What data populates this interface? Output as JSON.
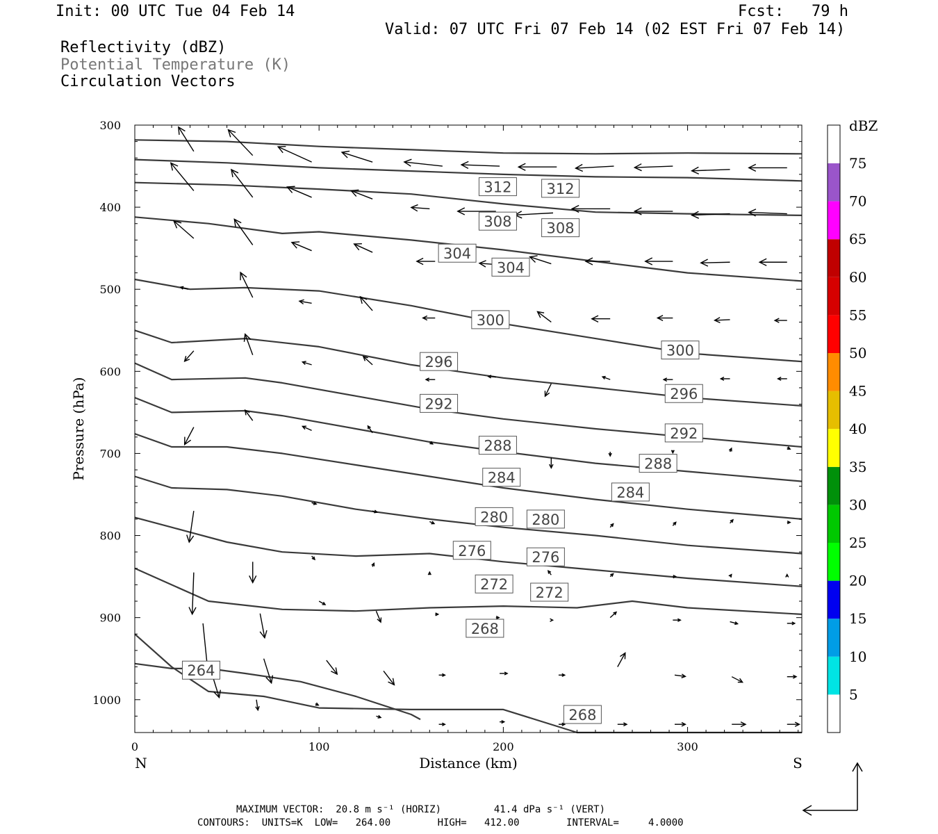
{
  "header": {
    "init": "Init: 00 UTC Tue 04 Feb 14",
    "fcst": "Fcst:   79 h",
    "valid": "Valid: 07 UTC Fri 07 Feb 14 (02 EST Fri 07 Feb 14)",
    "field1": "Reflectivity (dBZ)",
    "field2": "Potential Temperature (K)",
    "field3": "Circulation Vectors"
  },
  "footer": {
    "line1": "MAXIMUM VECTOR:  20.8 m s⁻¹ (HORIZ)         41.4 dPa s⁻¹ (VERT)",
    "line2": "CONTOURS:  UNITS=K  LOW=   264.00        HIGH=   412.00        INTERVAL=     4.0000"
  },
  "colors": {
    "contour": "#3a3a3a",
    "vector": "#000000",
    "frame": "#000000"
  },
  "chart_data": {
    "type": "line",
    "xlabel": "Distance (km)",
    "ylabel": "Pressure (hPa)",
    "xlim": [
      0,
      362
    ],
    "ylim": [
      1040,
      300
    ],
    "yscale": "linear-inverted",
    "x_ticks": [
      0,
      100,
      200,
      300
    ],
    "y_ticks": [
      300,
      400,
      500,
      600,
      700,
      800,
      900,
      1000
    ],
    "end_labels": {
      "left": "N",
      "right": "S"
    },
    "colorbar": {
      "title": "dBZ",
      "ticks": [
        5,
        10,
        15,
        20,
        25,
        30,
        35,
        40,
        45,
        50,
        55,
        60,
        65,
        70,
        75
      ],
      "colors": [
        "#ffffff",
        "#00e4e4",
        "#009de6",
        "#0000f0",
        "#00ff00",
        "#00c800",
        "#00900a",
        "#ffff00",
        "#e6be00",
        "#ff8c00",
        "#ff0000",
        "#d60000",
        "#c00000",
        "#ff00ff",
        "#9a55ca",
        "#ffffff"
      ]
    },
    "series": [
      {
        "name": "312",
        "x": [
          0,
          50,
          100,
          150,
          200,
          250,
          300,
          362
        ],
        "values": [
          318,
          320,
          326,
          330,
          334,
          335,
          334,
          335
        ]
      },
      {
        "name": "312",
        "x": [
          0,
          50,
          100,
          150,
          200,
          250,
          300,
          362
        ],
        "values": [
          342,
          346,
          352,
          356,
          360,
          363,
          364,
          368
        ]
      },
      {
        "name": "308",
        "x": [
          0,
          50,
          100,
          150,
          200,
          250,
          300,
          362
        ],
        "values": [
          370,
          373,
          378,
          384,
          396,
          406,
          408,
          410
        ]
      },
      {
        "name": "304",
        "x": [
          0,
          40,
          80,
          100,
          150,
          200,
          250,
          300,
          362
        ],
        "values": [
          412,
          420,
          432,
          430,
          440,
          452,
          466,
          480,
          490
        ]
      },
      {
        "name": "300",
        "x": [
          0,
          30,
          60,
          100,
          150,
          200,
          250,
          300,
          362
        ],
        "values": [
          488,
          500,
          498,
          502,
          520,
          542,
          560,
          578,
          588
        ]
      },
      {
        "name": "296",
        "x": [
          0,
          20,
          60,
          100,
          150,
          200,
          250,
          300,
          362
        ],
        "values": [
          550,
          565,
          560,
          570,
          592,
          608,
          620,
          632,
          642
        ]
      },
      {
        "name": "292",
        "x": [
          0,
          20,
          60,
          80,
          120,
          160,
          200,
          250,
          300,
          362
        ],
        "values": [
          590,
          610,
          608,
          614,
          630,
          646,
          658,
          670,
          680,
          692
        ]
      },
      {
        "name": "288",
        "x": [
          0,
          20,
          60,
          80,
          120,
          160,
          200,
          250,
          300,
          362
        ],
        "values": [
          632,
          650,
          648,
          654,
          670,
          686,
          698,
          712,
          722,
          734
        ]
      },
      {
        "name": "284",
        "x": [
          0,
          20,
          50,
          80,
          120,
          160,
          200,
          250,
          300,
          362
        ],
        "values": [
          676,
          692,
          692,
          700,
          714,
          728,
          742,
          756,
          768,
          780
        ]
      },
      {
        "name": "280",
        "x": [
          0,
          20,
          50,
          80,
          120,
          160,
          200,
          250,
          300,
          362
        ],
        "values": [
          728,
          742,
          744,
          752,
          768,
          780,
          790,
          800,
          812,
          822
        ]
      },
      {
        "name": "276",
        "x": [
          0,
          20,
          50,
          80,
          120,
          160,
          200,
          250,
          300,
          362
        ],
        "values": [
          778,
          790,
          808,
          820,
          825,
          822,
          832,
          842,
          852,
          862
        ]
      },
      {
        "name": "272",
        "x": [
          0,
          20,
          40,
          80,
          120,
          160,
          200,
          240,
          270,
          300,
          362
        ],
        "values": [
          840,
          860,
          880,
          890,
          892,
          888,
          886,
          888,
          880,
          888,
          896
        ]
      },
      {
        "name": "268",
        "x": [
          0,
          20,
          40,
          70,
          100,
          150,
          200,
          240,
          245,
          300,
          362
        ],
        "values": [
          920,
          960,
          990,
          996,
          1010,
          1012,
          1012,
          1040,
          1040,
          1040,
          1040
        ]
      },
      {
        "name": "264",
        "x": [
          0,
          20,
          40,
          60,
          90,
          120,
          150,
          155
        ],
        "values": [
          956,
          962,
          962,
          968,
          978,
          996,
          1018,
          1024
        ]
      }
    ],
    "contour_labels": [
      {
        "text": "312",
        "x": 197,
        "y": 375
      },
      {
        "text": "312",
        "x": 231,
        "y": 377
      },
      {
        "text": "308",
        "x": 197,
        "y": 417
      },
      {
        "text": "308",
        "x": 231,
        "y": 425
      },
      {
        "text": "304",
        "x": 175,
        "y": 456
      },
      {
        "text": "304",
        "x": 204,
        "y": 473
      },
      {
        "text": "300",
        "x": 193,
        "y": 537
      },
      {
        "text": "300",
        "x": 296,
        "y": 574
      },
      {
        "text": "296",
        "x": 165,
        "y": 588
      },
      {
        "text": "296",
        "x": 298,
        "y": 627
      },
      {
        "text": "292",
        "x": 165,
        "y": 639
      },
      {
        "text": "292",
        "x": 298,
        "y": 675
      },
      {
        "text": "288",
        "x": 197,
        "y": 690
      },
      {
        "text": "288",
        "x": 284,
        "y": 712
      },
      {
        "text": "284",
        "x": 199,
        "y": 729
      },
      {
        "text": "284",
        "x": 269,
        "y": 747
      },
      {
        "text": "280",
        "x": 195,
        "y": 777
      },
      {
        "text": "280",
        "x": 223,
        "y": 780
      },
      {
        "text": "276",
        "x": 183,
        "y": 818
      },
      {
        "text": "276",
        "x": 223,
        "y": 826
      },
      {
        "text": "272",
        "x": 195,
        "y": 859
      },
      {
        "text": "272",
        "x": 225,
        "y": 869
      },
      {
        "text": "268",
        "x": 190,
        "y": 913
      },
      {
        "text": "268",
        "x": 243,
        "y": 1018
      },
      {
        "text": "264",
        "x": 36,
        "y": 964
      }
    ],
    "vectors": [
      {
        "x": 32,
        "p": 332,
        "u": -10,
        "v": 35
      },
      {
        "x": 64,
        "p": 337,
        "u": -16,
        "v": 37
      },
      {
        "x": 96,
        "p": 345,
        "u": -22,
        "v": 22
      },
      {
        "x": 129,
        "p": 345,
        "u": -20,
        "v": 14
      },
      {
        "x": 167,
        "p": 350,
        "u": -25,
        "v": 6
      },
      {
        "x": 198,
        "p": 350,
        "u": -25,
        "v": 2
      },
      {
        "x": 229,
        "p": 351,
        "u": -25,
        "v": 0
      },
      {
        "x": 260,
        "p": 350,
        "u": -25,
        "v": -3
      },
      {
        "x": 292,
        "p": 350,
        "u": -25,
        "v": -2
      },
      {
        "x": 323,
        "p": 354,
        "u": -25,
        "v": -2
      },
      {
        "x": 354,
        "p": 352,
        "u": -25,
        "v": 0
      },
      {
        "x": 32,
        "p": 380,
        "u": -15,
        "v": 40
      },
      {
        "x": 64,
        "p": 388,
        "u": -14,
        "v": 40
      },
      {
        "x": 96,
        "p": 388,
        "u": -16,
        "v": 15
      },
      {
        "x": 129,
        "p": 390,
        "u": -14,
        "v": 12
      },
      {
        "x": 160,
        "p": 402,
        "u": -12,
        "v": 2
      },
      {
        "x": 196,
        "p": 405,
        "u": -25,
        "v": 0
      },
      {
        "x": 227,
        "p": 407,
        "u": -25,
        "v": -3
      },
      {
        "x": 258,
        "p": 402,
        "u": -25,
        "v": 0
      },
      {
        "x": 292,
        "p": 405,
        "u": -25,
        "v": 0
      },
      {
        "x": 323,
        "p": 408,
        "u": -25,
        "v": -2
      },
      {
        "x": 354,
        "p": 408,
        "u": -25,
        "v": 2
      },
      {
        "x": 32,
        "p": 438,
        "u": -13,
        "v": 25
      },
      {
        "x": 64,
        "p": 446,
        "u": -12,
        "v": 37
      },
      {
        "x": 96,
        "p": 453,
        "u": -13,
        "v": 12
      },
      {
        "x": 129,
        "p": 455,
        "u": -12,
        "v": 12
      },
      {
        "x": 163,
        "p": 466,
        "u": -12,
        "v": 0
      },
      {
        "x": 197,
        "p": 470,
        "u": -12,
        "v": 2
      },
      {
        "x": 226,
        "p": 469,
        "u": -14,
        "v": 10
      },
      {
        "x": 258,
        "p": 466,
        "u": -16,
        "v": 0
      },
      {
        "x": 292,
        "p": 466,
        "u": -18,
        "v": 0
      },
      {
        "x": 323,
        "p": 467,
        "u": -19,
        "v": -1
      },
      {
        "x": 354,
        "p": 467,
        "u": -18,
        "v": 0
      },
      {
        "x": 29,
        "p": 500,
        "u": -5,
        "v": 3
      },
      {
        "x": 64,
        "p": 510,
        "u": -8,
        "v": 36
      },
      {
        "x": 96,
        "p": 517,
        "u": -8,
        "v": 3
      },
      {
        "x": 129,
        "p": 526,
        "u": -8,
        "v": 20
      },
      {
        "x": 163,
        "p": 535,
        "u": -8,
        "v": 0
      },
      {
        "x": 196,
        "p": 535,
        "u": -9,
        "v": 0
      },
      {
        "x": 226,
        "p": 540,
        "u": -9,
        "v": 15
      },
      {
        "x": 258,
        "p": 536,
        "u": -12,
        "v": 0
      },
      {
        "x": 292,
        "p": 535,
        "u": -10,
        "v": 0
      },
      {
        "x": 323,
        "p": 537,
        "u": -10,
        "v": -1
      },
      {
        "x": 354,
        "p": 538,
        "u": -8,
        "v": 0
      },
      {
        "x": 32,
        "p": 575,
        "u": -6,
        "v": -15
      },
      {
        "x": 64,
        "p": 580,
        "u": -5,
        "v": 30
      },
      {
        "x": 96,
        "p": 592,
        "u": -6,
        "v": 4
      },
      {
        "x": 129,
        "p": 592,
        "u": -6,
        "v": 12
      },
      {
        "x": 163,
        "p": 610,
        "u": -6,
        "v": 0
      },
      {
        "x": 196,
        "p": 607,
        "u": -5,
        "v": 1
      },
      {
        "x": 226,
        "p": 615,
        "u": -4,
        "v": -18
      },
      {
        "x": 258,
        "p": 610,
        "u": -5,
        "v": 4
      },
      {
        "x": 292,
        "p": 610,
        "u": -6,
        "v": 0
      },
      {
        "x": 323,
        "p": 609,
        "u": -6,
        "v": 0
      },
      {
        "x": 354,
        "p": 609,
        "u": -6,
        "v": 0
      },
      {
        "x": 32,
        "p": 668,
        "u": -6,
        "v": -25
      },
      {
        "x": 64,
        "p": 660,
        "u": -5,
        "v": 15
      },
      {
        "x": 96,
        "p": 672,
        "u": -6,
        "v": 6
      },
      {
        "x": 129,
        "p": 675,
        "u": -3,
        "v": 10
      },
      {
        "x": 160,
        "p": 686,
        "u": 2,
        "v": -3
      },
      {
        "x": 226,
        "p": 705,
        "u": 0,
        "v": -15
      },
      {
        "x": 258,
        "p": 698,
        "u": 0,
        "v": -6
      },
      {
        "x": 292,
        "p": 696,
        "u": 0,
        "v": -4
      },
      {
        "x": 323,
        "p": 698,
        "u": 1,
        "v": 5
      },
      {
        "x": 354,
        "p": 693,
        "u": 2,
        "v": -2
      },
      {
        "x": 32,
        "p": 770,
        "u": -3,
        "v": -45
      },
      {
        "x": 96,
        "p": 760,
        "u": 3,
        "v": -2
      },
      {
        "x": 129,
        "p": 770,
        "u": 3,
        "v": -2
      },
      {
        "x": 160,
        "p": 783,
        "u": 3,
        "v": -3
      },
      {
        "x": 226,
        "p": 783,
        "u": 0,
        "v": -2
      },
      {
        "x": 258,
        "p": 790,
        "u": 2,
        "v": 5
      },
      {
        "x": 292,
        "p": 788,
        "u": 2,
        "v": 5
      },
      {
        "x": 323,
        "p": 785,
        "u": 2,
        "v": 5
      },
      {
        "x": 354,
        "p": 784,
        "u": 2,
        "v": 0
      },
      {
        "x": 32,
        "p": 845,
        "u": -1,
        "v": -60
      },
      {
        "x": 64,
        "p": 832,
        "u": 0,
        "v": -30
      },
      {
        "x": 96,
        "p": 825,
        "u": 2,
        "v": -5
      },
      {
        "x": 129,
        "p": 838,
        "u": 1,
        "v": 5
      },
      {
        "x": 160,
        "p": 848,
        "u": 0,
        "v": 4
      },
      {
        "x": 226,
        "p": 848,
        "u": -2,
        "v": 6
      },
      {
        "x": 258,
        "p": 850,
        "u": 2,
        "v": 4
      },
      {
        "x": 292,
        "p": 850,
        "u": 2,
        "v": 0
      },
      {
        "x": 323,
        "p": 850,
        "u": 1,
        "v": 3
      },
      {
        "x": 354,
        "p": 850,
        "u": 0,
        "v": 3
      },
      {
        "x": 37,
        "p": 907,
        "u": 3,
        "v": -65
      },
      {
        "x": 68,
        "p": 895,
        "u": 3,
        "v": -35
      },
      {
        "x": 100,
        "p": 880,
        "u": 4,
        "v": -5
      },
      {
        "x": 131,
        "p": 892,
        "u": 3,
        "v": -16
      },
      {
        "x": 163,
        "p": 896,
        "u": 2,
        "v": 0
      },
      {
        "x": 196,
        "p": 900,
        "u": 2,
        "v": 0
      },
      {
        "x": 226,
        "p": 903,
        "u": 1,
        "v": 0
      },
      {
        "x": 258,
        "p": 900,
        "u": 4,
        "v": 8
      },
      {
        "x": 292,
        "p": 903,
        "u": 5,
        "v": 0
      },
      {
        "x": 323,
        "p": 905,
        "u": 5,
        "v": -3
      },
      {
        "x": 354,
        "p": 907,
        "u": 5,
        "v": 0
      },
      {
        "x": 40,
        "p": 955,
        "u": 7,
        "v": -50
      },
      {
        "x": 70,
        "p": 950,
        "u": 5,
        "v": -35
      },
      {
        "x": 104,
        "p": 952,
        "u": 7,
        "v": -20
      },
      {
        "x": 135,
        "p": 965,
        "u": 7,
        "v": -20
      },
      {
        "x": 165,
        "p": 970,
        "u": 4,
        "v": 0
      },
      {
        "x": 198,
        "p": 968,
        "u": 5,
        "v": 0
      },
      {
        "x": 230,
        "p": 970,
        "u": 4,
        "v": 0
      },
      {
        "x": 262,
        "p": 960,
        "u": 5,
        "v": 20
      },
      {
        "x": 293,
        "p": 970,
        "u": 7,
        "v": -2
      },
      {
        "x": 324,
        "p": 972,
        "u": 7,
        "v": -8
      },
      {
        "x": 354,
        "p": 972,
        "u": 6,
        "v": 0
      },
      {
        "x": 66,
        "p": 1000,
        "u": 1,
        "v": -15
      },
      {
        "x": 98,
        "p": 1005,
        "u": 2,
        "v": -2
      },
      {
        "x": 131,
        "p": 1020,
        "u": 3,
        "v": -2
      },
      {
        "x": 165,
        "p": 1030,
        "u": 4,
        "v": 0
      },
      {
        "x": 198,
        "p": 1027,
        "u": 3,
        "v": 0
      },
      {
        "x": 230,
        "p": 1030,
        "u": 4,
        "v": 0
      },
      {
        "x": 262,
        "p": 1030,
        "u": 6,
        "v": 0
      },
      {
        "x": 293,
        "p": 1030,
        "u": 7,
        "v": 0
      },
      {
        "x": 324,
        "p": 1030,
        "u": 9,
        "v": 0
      },
      {
        "x": 354,
        "p": 1030,
        "u": 8,
        "v": 0
      }
    ]
  }
}
